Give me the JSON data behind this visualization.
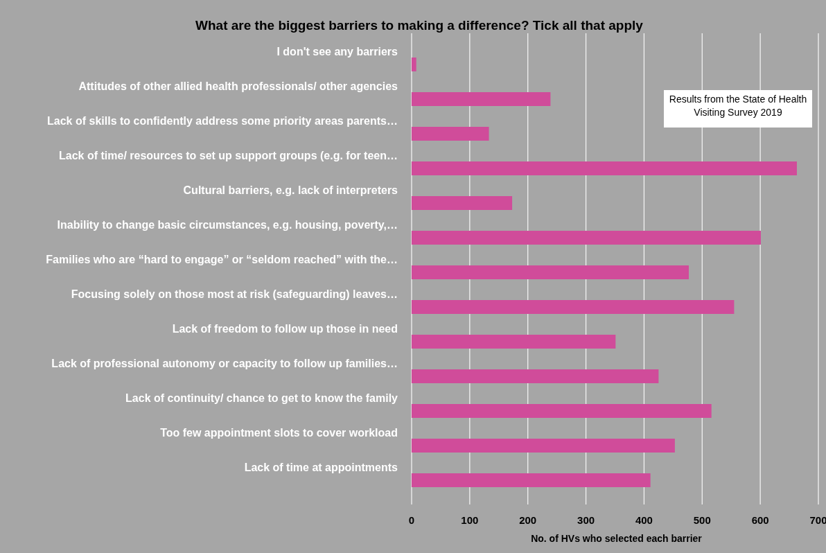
{
  "chart_data": {
    "type": "bar",
    "orientation": "horizontal",
    "title": "What are the biggest barriers to making a difference? Tick all that apply",
    "xlabel": "No. of HVs who selected each barrier",
    "categories": [
      "I don't see any barriers",
      "Attitudes of other allied health professionals/ other agencies",
      "Lack of skills to confidently address some priority areas parents…",
      "Lack of time/ resources to set up support groups (e.g. for teen…",
      "Cultural barriers, e.g. lack of interpreters",
      "Inability to change basic circumstances, e.g. housing, poverty,…",
      "Families who are “hard to engage” or “seldom reached” with the…",
      "Focusing solely on those most at risk (safeguarding) leaves…",
      "Lack of freedom to follow up those in need",
      "Lack of professional autonomy or capacity to follow up families…",
      "Lack of continuity/ chance to get to know the family",
      "Too few appointment slots to cover workload",
      "Lack of time at appointments"
    ],
    "values": [
      8,
      239,
      133,
      663,
      173,
      601,
      477,
      555,
      351,
      425,
      516,
      453,
      411
    ],
    "color": "#d04c9a",
    "xlim": [
      0,
      700
    ],
    "xticks": [
      0,
      100,
      200,
      300,
      400,
      500,
      600,
      700
    ],
    "grid": "x",
    "annotations": [
      "Results from the State of Health Visiting Survey 2019"
    ]
  }
}
